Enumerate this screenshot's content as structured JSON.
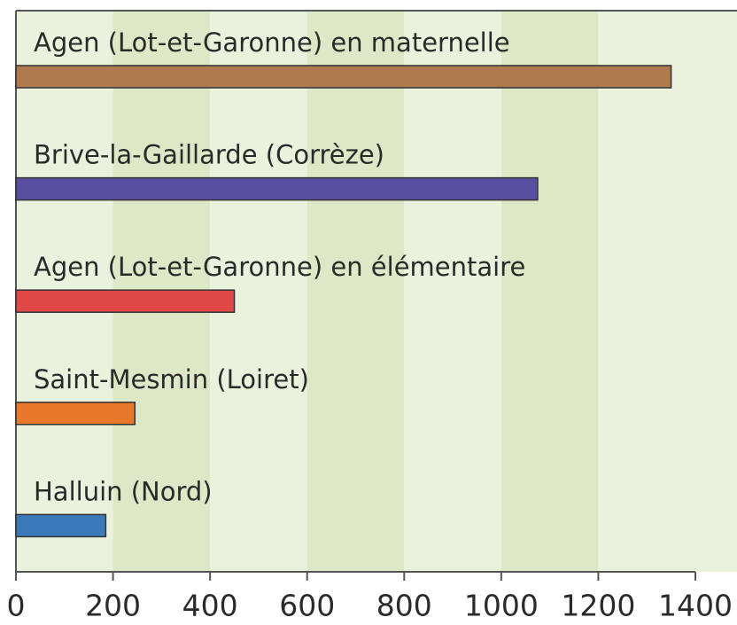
{
  "chart_data": {
    "type": "bar",
    "orientation": "horizontal",
    "categories": [
      "Agen (Lot-et-Garonne) en maternelle",
      "Brive-la-Gaillarde (Corrèze)",
      "Agen (Lot-et-Garonne) en élémentaire",
      "Saint-Mesmin (Loiret)",
      "Halluin (Nord)"
    ],
    "values": [
      1350,
      1075,
      450,
      245,
      185
    ],
    "colors": [
      "#b07a4f",
      "#5a4ea0",
      "#e04848",
      "#e8782a",
      "#3a7ab8"
    ],
    "xlim": [
      0,
      1400
    ],
    "xticks": [
      0,
      200,
      400,
      600,
      800,
      1000,
      1200,
      1400
    ]
  }
}
